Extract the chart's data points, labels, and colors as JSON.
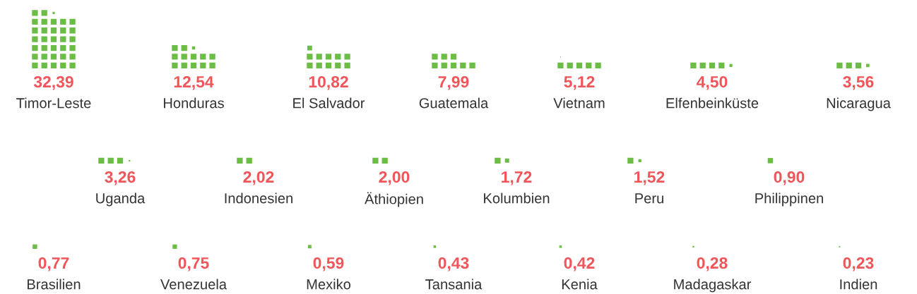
{
  "chart_data": {
    "type": "other",
    "categories": [
      "Timor-Leste",
      "Honduras",
      "El Salvador",
      "Guatemala",
      "Vietnam",
      "Elfenbeinküste",
      "Nicaragua",
      "Uganda",
      "Indonesien",
      "Äthiopien",
      "Kolumbien",
      "Peru",
      "Philippinen",
      "Brasilien",
      "Venezuela",
      "Mexiko",
      "Tansania",
      "Kenia",
      "Madagaskar",
      "Indien"
    ],
    "values": [
      32.39,
      12.54,
      10.82,
      7.99,
      5.12,
      4.5,
      3.56,
      3.26,
      2.02,
      2.0,
      1.72,
      1.52,
      0.9,
      0.77,
      0.75,
      0.59,
      0.43,
      0.42,
      0.28,
      0.23
    ],
    "value_labels": [
      "32,39",
      "12,54",
      "10,82",
      "7,99",
      "5,12",
      "4,50",
      "3,56",
      "3,26",
      "2,02",
      "2,00",
      "1,72",
      "1,52",
      "0,90",
      "0,77",
      "0,75",
      "0,59",
      "0,43",
      "0,42",
      "0,28",
      "0,23"
    ],
    "color": "#6cbd45"
  }
}
